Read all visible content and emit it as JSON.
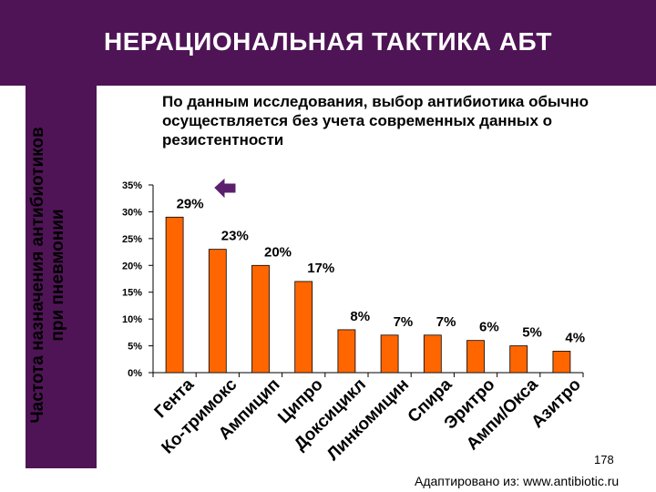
{
  "header": {
    "title": "НЕРАЦИОНАЛЬНАЯ ТАКТИКА АБТ",
    "bg_color": "#4f1456"
  },
  "subtitle": "По данным исследования, выбор антибиотика обычно осуществляется без учета современных данных о резистентности",
  "footer": {
    "page_number": "178",
    "source": "Адаптировано из: www.antibiotic.ru"
  },
  "chart_data": {
    "type": "bar",
    "ylabel": "Частота назначения антибиотиков при пневмонии",
    "xlabel": "",
    "ylim": [
      0,
      35
    ],
    "yticks": [
      "0%",
      "5%",
      "10%",
      "15%",
      "20%",
      "25%",
      "30%",
      "35%"
    ],
    "ytick_values": [
      0,
      5,
      10,
      15,
      20,
      25,
      30,
      35
    ],
    "categories": [
      "Гента",
      "Ко-тримокс",
      "Ампицип",
      "Ципро",
      "Доксицикл",
      "Линкомицин",
      "Спира",
      "Эритро",
      "Ампи/Окса",
      "Азитро"
    ],
    "values": [
      29,
      23,
      20,
      17,
      8,
      7,
      7,
      6,
      5,
      4
    ],
    "value_labels": [
      "29%",
      "23%",
      "20%",
      "17%",
      "8%",
      "7%",
      "7%",
      "6%",
      "5%",
      "4%"
    ],
    "bar_color": "#ff6600",
    "arrow_color": "#5c1f6e",
    "grid": false
  }
}
